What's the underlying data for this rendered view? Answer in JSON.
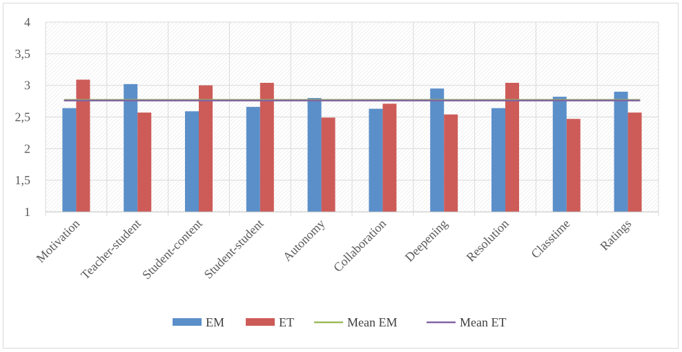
{
  "chart_data": {
    "type": "bar",
    "title": "",
    "xlabel": "",
    "ylabel": "",
    "ylim": [
      1,
      4
    ],
    "y_ticks": [
      "1",
      "1,5",
      "2",
      "2,5",
      "3",
      "3,5",
      "4"
    ],
    "y_tick_values": [
      1,
      1.5,
      2,
      2.5,
      3,
      3.5,
      4
    ],
    "categories": [
      "Motivation",
      "Teacher-student",
      "Student-content",
      "Student-student",
      "Autonomy",
      "Collaboration",
      "Deepening",
      "Resolution",
      "Classtime",
      "Ratings"
    ],
    "series": [
      {
        "name": "EM",
        "color": "#5b8fc9",
        "values": [
          2.64,
          3.02,
          2.59,
          2.66,
          2.8,
          2.63,
          2.95,
          2.64,
          2.82,
          2.9
        ]
      },
      {
        "name": "ET",
        "color": "#cd5c58",
        "values": [
          3.09,
          2.57,
          3.0,
          3.04,
          2.49,
          2.71,
          2.54,
          3.04,
          2.47,
          2.57
        ]
      }
    ],
    "lines": [
      {
        "name": "Mean EM",
        "color": "#9bbb59",
        "value": 2.77
      },
      {
        "name": "Mean ET",
        "color": "#8064a2",
        "value": 2.76
      }
    ],
    "grid": true,
    "legend_position": "bottom"
  }
}
